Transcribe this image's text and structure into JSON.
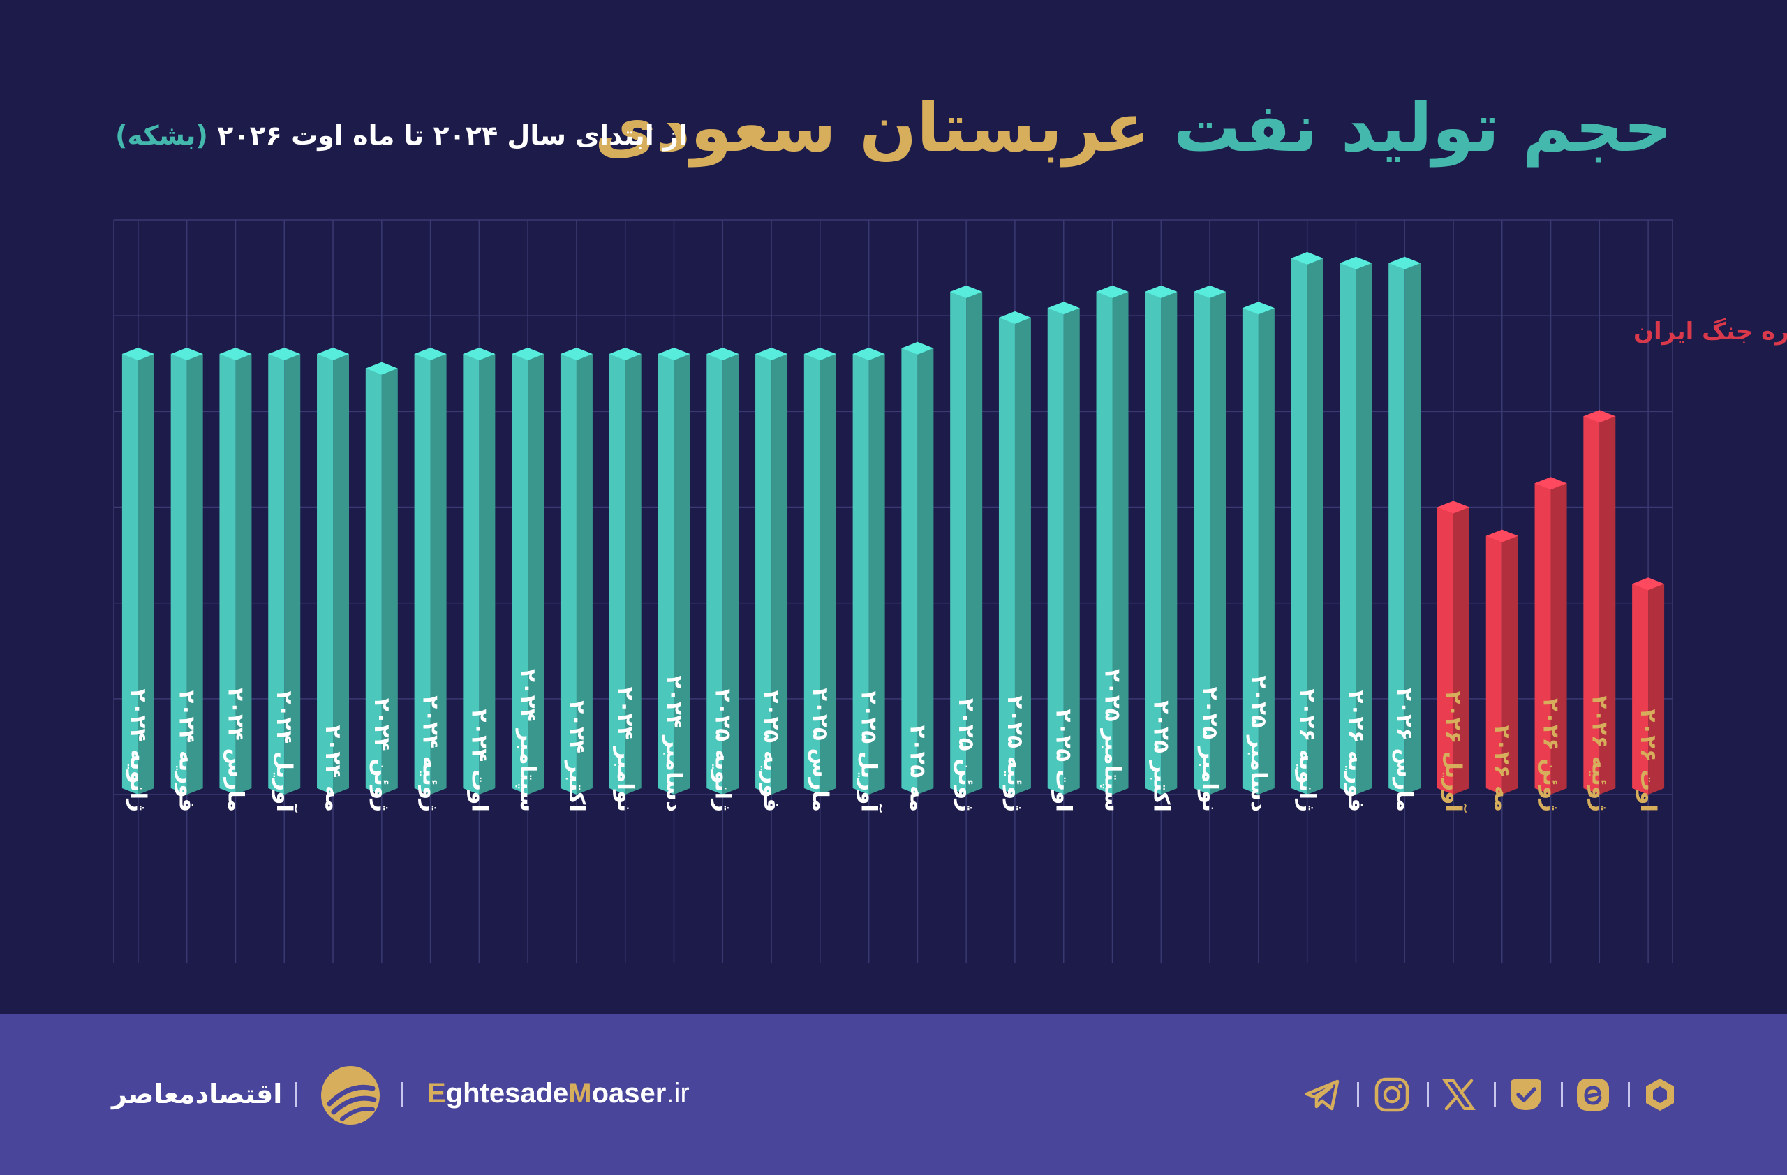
{
  "header": {
    "title_part1": "حجم تولید نفت",
    "title_part2": "عربستان سعودی",
    "subtitle_main": "از ابتدای سال ۲۰۲۴ تا ماه اوت ۲۰۲۶",
    "subtitle_unit": "(بشکه)"
  },
  "annotation": "دوره جنگ ایران",
  "colors": {
    "background": "#1c1b4a",
    "peace_bar": "#45b8ad",
    "war_bar": "#d9394a",
    "peace_label": "#ffffff",
    "war_label": "#d7ae5c",
    "title_accent": "#d7ae5c",
    "footer": "#48459a"
  },
  "chart_data": {
    "type": "bar",
    "categories": [
      "ژانویه ۲۰۲۴",
      "فوریه ۲۰۲۴",
      "مارس ۲۰۲۴",
      "آوریل ۲۰۲۴",
      "مه ۲۰۲۴",
      "ژوئن ۲۰۲۴",
      "ژوئیه ۲۰۲۴",
      "اوت ۲۰۲۴",
      "سپتامبر ۲۰۲۴",
      "اکتبر ۲۰۲۴",
      "نوامبر ۲۰۲۴",
      "دسامبر ۲۰۲۴",
      "ژانویه ۲۰۲۵",
      "فوریه ۲۰۲۵",
      "مارس ۲۰۲۵",
      "آوریل ۲۰۲۵",
      "مه ۲۰۲۵",
      "ژوئن ۲۰۲۵",
      "ژوئیه ۲۰۲۵",
      "اوت ۲۰۲۵",
      "سپتامبر ۲۰۲۵",
      "اکتبر ۲۰۲۵",
      "نوامبر ۲۰۲۵",
      "دسامبر ۲۰۲۵",
      "ژانویه ۲۰۲۶",
      "فوریه ۲۰۲۶",
      "مارس ۲۰۲۶",
      "آوریل ۲۰۲۶",
      "مه ۲۰۲۶",
      "ژوئن ۲۰۲۶",
      "ژوئیه ۲۰۲۶",
      "اوت ۲۰۲۶"
    ],
    "values": [
      4.6,
      4.6,
      4.6,
      4.6,
      4.6,
      4.45,
      4.6,
      4.6,
      4.6,
      4.6,
      4.6,
      4.6,
      4.6,
      4.6,
      4.6,
      4.6,
      4.66,
      5.25,
      4.98,
      5.08,
      5.25,
      5.25,
      5.25,
      5.08,
      5.6,
      5.55,
      5.55,
      3.0,
      2.7,
      3.25,
      3.95,
      2.2
    ],
    "war_period_start_index": 27,
    "ylim": [
      0,
      6
    ],
    "yticks": [
      0,
      1,
      2,
      3,
      4,
      5,
      6
    ],
    "grid": true,
    "title": "حجم تولید نفت عربستان سعودی",
    "ylabel": ""
  },
  "footer": {
    "brand_name": "اقتصادمعاصر",
    "site_cap1": "E",
    "site_part1": "ghtesade",
    "site_cap2": "M",
    "site_part2": "oaser",
    "site_tld": ".ir",
    "social_icons": [
      "telegram-icon",
      "instagram-icon",
      "x-icon",
      "bale-icon",
      "eitaa-icon",
      "rubika-icon"
    ]
  }
}
